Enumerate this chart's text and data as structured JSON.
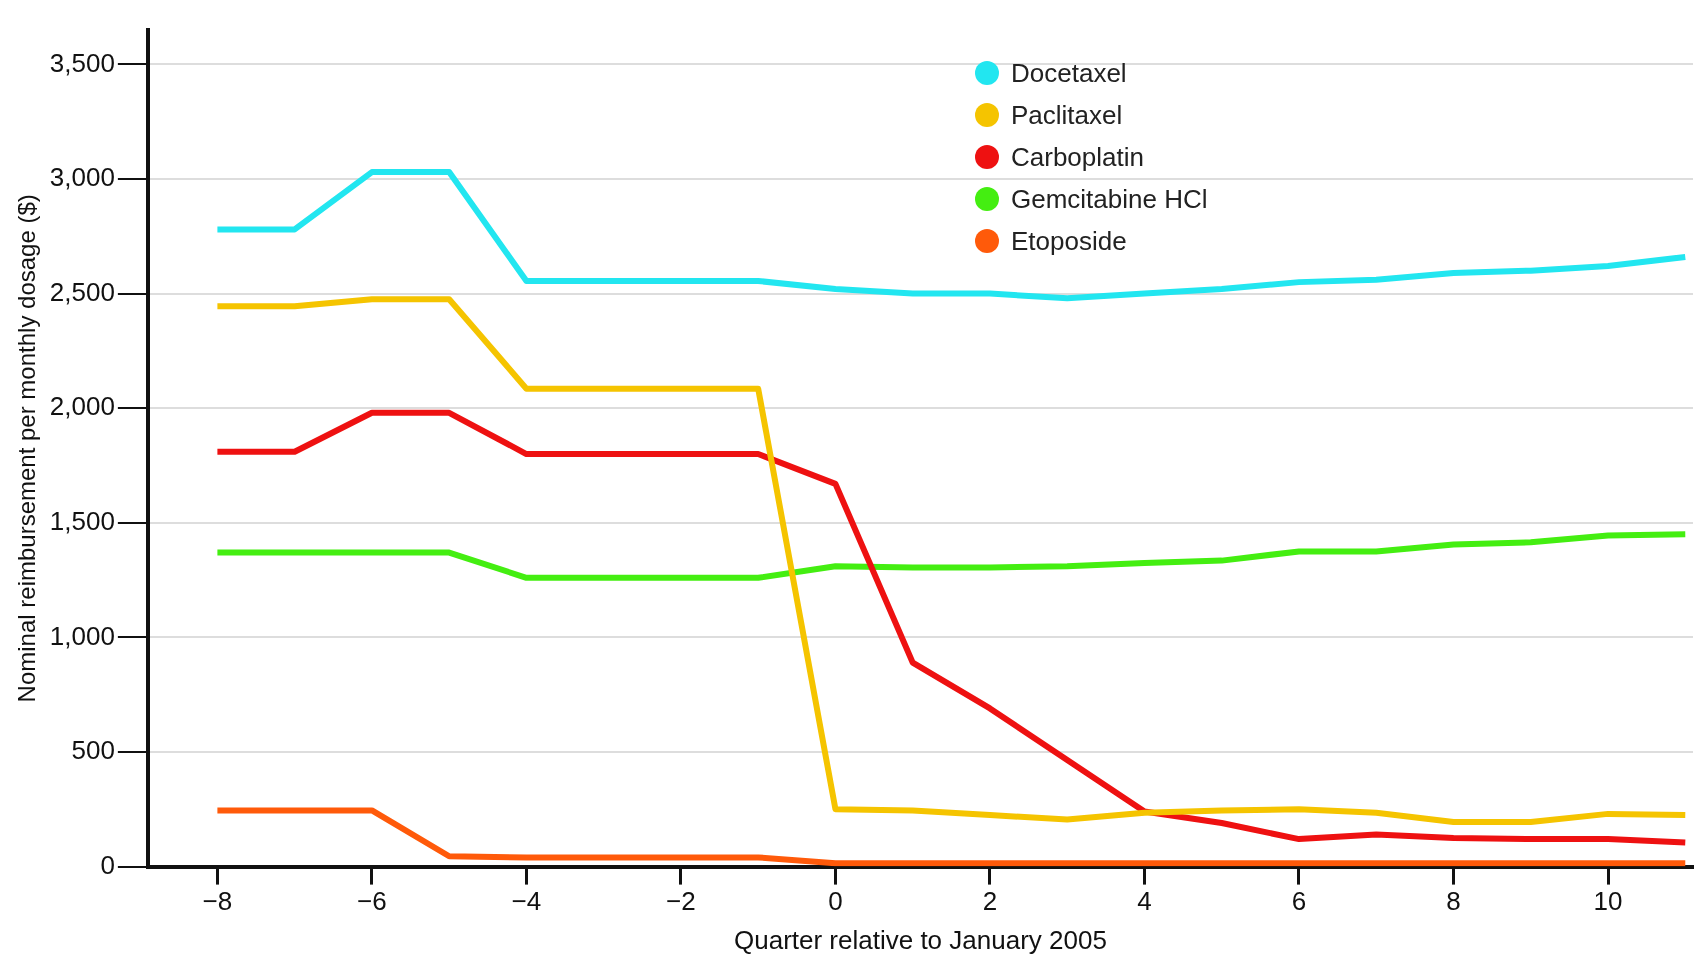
{
  "chart_data": {
    "type": "line",
    "xlabel": "Quarter relative to January 2005",
    "ylabel": "Nominal reimbursement per monthly dosage ($)",
    "x": [
      -8,
      -7,
      -6,
      -5,
      -4,
      -3,
      -2,
      -1,
      0,
      1,
      2,
      3,
      4,
      5,
      6,
      7,
      8,
      9,
      10,
      11
    ],
    "xlim": [
      -8.9,
      11.1
    ],
    "xticks": [
      -8,
      -6,
      -4,
      -2,
      0,
      2,
      4,
      6,
      8,
      10
    ],
    "ylim": [
      0,
      3650
    ],
    "yticks": [
      0,
      {
        "value": 500,
        "label": "500"
      },
      {
        "value": 1000,
        "label": "1,000"
      },
      {
        "value": 1500,
        "label": "1,500"
      },
      {
        "value": 2000,
        "label": "2,000"
      },
      {
        "value": 2500,
        "label": "2,500"
      },
      {
        "value": 3000,
        "label": "3,000"
      },
      {
        "value": 3500,
        "label": "3,500"
      }
    ],
    "grid": "y",
    "legend": "top",
    "marker": "none",
    "line_style": "solid",
    "series": [
      {
        "name": "Docetaxel",
        "color": "#22e6f0",
        "values": [
          2780,
          2780,
          3030,
          3030,
          2555,
          2555,
          2555,
          2555,
          2520,
          2500,
          2500,
          2480,
          2500,
          2520,
          2550,
          2560,
          2590,
          2600,
          2620,
          2660
        ]
      },
      {
        "name": "Paclitaxel",
        "color": "#f5c400",
        "values": [
          2445,
          2445,
          2475,
          2475,
          2085,
          2085,
          2085,
          2085,
          250,
          245,
          225,
          205,
          235,
          245,
          250,
          235,
          195,
          195,
          230,
          225
        ]
      },
      {
        "name": "Carboplatin",
        "color": "#ee1111",
        "values": [
          1810,
          1810,
          1980,
          1980,
          1800,
          1800,
          1800,
          1800,
          1670,
          890,
          690,
          465,
          240,
          190,
          120,
          140,
          125,
          120,
          120,
          105
        ]
      },
      {
        "name": "Gemcitabine HCl",
        "color": "#44ee11",
        "values": [
          1370,
          1370,
          1370,
          1370,
          1260,
          1260,
          1260,
          1260,
          1310,
          1305,
          1305,
          1310,
          1325,
          1335,
          1375,
          1375,
          1405,
          1415,
          1445,
          1450
        ]
      },
      {
        "name": "Etoposide",
        "color": "#ff5a0a",
        "values": [
          245,
          245,
          245,
          45,
          40,
          40,
          40,
          40,
          15,
          15,
          15,
          15,
          15,
          15,
          15,
          15,
          15,
          15,
          15,
          15
        ]
      }
    ]
  }
}
